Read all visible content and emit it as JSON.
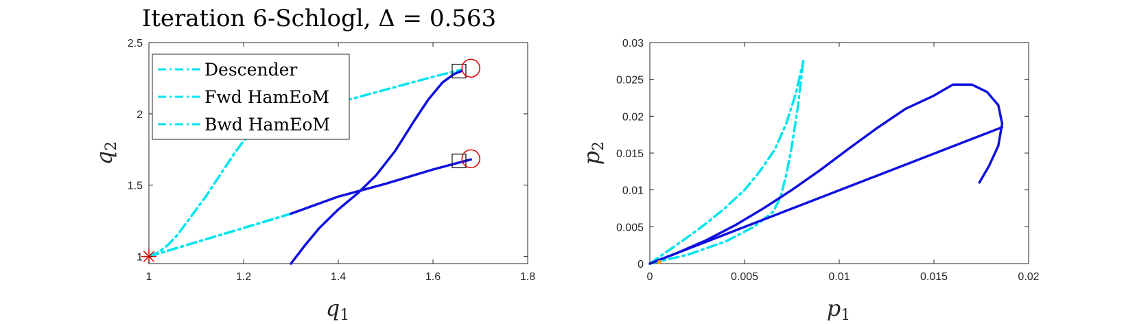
{
  "chart_data": [
    {
      "type": "line",
      "title": "Iteration 6-Schlogl, Δ = 0.563",
      "xlabel": "q",
      "xlabel_sub": "1",
      "ylabel": "q",
      "ylabel_sub": "2",
      "xlim": [
        1,
        1.8
      ],
      "ylim": [
        0.95,
        2.5
      ],
      "xticks": [
        1,
        1.2,
        1.4,
        1.6,
        1.8
      ],
      "xtick_labels": [
        "1",
        "1.2",
        "1.4",
        "1.6",
        "1.8"
      ],
      "yticks": [
        1,
        1.5,
        2,
        2.5
      ],
      "ytick_labels": [
        "1",
        "1.5",
        "2",
        "2.5"
      ],
      "legend_position": "top-left",
      "legend": [
        "Descender",
        "Fwd HamEoM",
        "Bwd HamEoM"
      ],
      "series": [
        {
          "name": "Descender",
          "color": "#00e5ee",
          "style": "dashdot",
          "x": [
            1.0,
            1.02,
            1.04,
            1.06,
            1.08,
            1.1,
            1.12,
            1.14,
            1.16,
            1.18,
            1.2,
            1.22,
            1.25,
            1.3,
            1.4,
            1.5,
            1.6,
            1.66
          ],
          "y": [
            1.0,
            1.03,
            1.08,
            1.15,
            1.24,
            1.33,
            1.42,
            1.52,
            1.62,
            1.72,
            1.81,
            1.88,
            1.94,
            1.99,
            2.08,
            2.17,
            2.26,
            2.31
          ]
        },
        {
          "name": "Fwd HamEoM",
          "color": "#00e5ee",
          "style": "dashdot",
          "x": [
            1.0,
            1.1,
            1.2,
            1.3
          ],
          "y": [
            1.0,
            1.1,
            1.2,
            1.3
          ]
        },
        {
          "name": "Bwd HamEoM",
          "color": "#00e5ee",
          "style": "dashdot",
          "x": [
            1.0,
            1.1,
            1.2,
            1.3
          ],
          "y": [
            1.0,
            1.1,
            1.2,
            1.3
          ]
        },
        {
          "color": "#1010e0",
          "style": "solid",
          "x": [
            1.3,
            1.33,
            1.36,
            1.4,
            1.44,
            1.48,
            1.52,
            1.56,
            1.59,
            1.62,
            1.645,
            1.66
          ],
          "y": [
            0.95,
            1.08,
            1.2,
            1.33,
            1.44,
            1.57,
            1.74,
            1.95,
            2.1,
            2.22,
            2.28,
            2.3
          ]
        },
        {
          "color": "#1010e0",
          "style": "solid",
          "x": [
            1.3,
            1.4,
            1.5,
            1.6,
            1.68
          ],
          "y": [
            1.3,
            1.42,
            1.51,
            1.61,
            1.68
          ]
        }
      ],
      "markers": [
        {
          "shape": "star",
          "color": "#e00000",
          "x": 1.0,
          "y": 1.0
        },
        {
          "shape": "square",
          "color": "#000000",
          "x": 1.655,
          "y": 2.3
        },
        {
          "shape": "square",
          "color": "#000000",
          "x": 1.655,
          "y": 1.67
        },
        {
          "shape": "circle",
          "color": "#e00000",
          "x": 1.68,
          "y": 2.32
        },
        {
          "shape": "circle",
          "color": "#e00000",
          "x": 1.68,
          "y": 1.685
        }
      ]
    },
    {
      "type": "line",
      "xlabel": "p",
      "xlabel_sub": "1",
      "ylabel": "p",
      "ylabel_sub": "2",
      "xlim": [
        0,
        0.02
      ],
      "ylim": [
        0,
        0.03
      ],
      "xticks": [
        0,
        0.005,
        0.01,
        0.015,
        0.02
      ],
      "xtick_labels": [
        "0",
        "0.005",
        "0.01",
        "0.015",
        "0.02"
      ],
      "yticks": [
        0,
        0.005,
        0.01,
        0.015,
        0.02,
        0.025,
        0.03
      ],
      "ytick_labels": [
        "0",
        "0.005",
        "0.01",
        "0.015",
        "0.02",
        "0.025",
        "0.03"
      ],
      "series": [
        {
          "color": "#00e5ee",
          "style": "dashdot",
          "x": [
            0.0,
            0.001,
            0.002,
            0.003,
            0.004,
            0.005,
            0.0058,
            0.0066,
            0.0072,
            0.0077,
            0.0081
          ],
          "y": [
            0.0,
            0.0018,
            0.0036,
            0.0055,
            0.0076,
            0.01,
            0.0125,
            0.0155,
            0.019,
            0.023,
            0.0275
          ]
        },
        {
          "color": "#00e5ee",
          "style": "dashdot",
          "x": [
            0.0,
            0.002,
            0.004,
            0.0055,
            0.0065,
            0.0069,
            0.0072,
            0.0075,
            0.0078,
            0.0081
          ],
          "y": [
            0.0,
            0.0012,
            0.003,
            0.005,
            0.007,
            0.009,
            0.012,
            0.016,
            0.021,
            0.0275
          ]
        },
        {
          "color": "#1010e0",
          "style": "solid",
          "x": [
            0.0,
            0.0015,
            0.003,
            0.0045,
            0.006,
            0.0075,
            0.009,
            0.0105,
            0.012,
            0.0135,
            0.015,
            0.016,
            0.017,
            0.0178,
            0.0184,
            0.0186,
            0.0184,
            0.0179,
            0.0174
          ],
          "y": [
            0.0,
            0.0015,
            0.0032,
            0.0052,
            0.0075,
            0.01,
            0.0127,
            0.0156,
            0.0184,
            0.021,
            0.0228,
            0.0243,
            0.0243,
            0.0233,
            0.0215,
            0.019,
            0.016,
            0.0132,
            0.011
          ]
        },
        {
          "color": "#1010e0",
          "style": "solid",
          "x": [
            0.0,
            0.0186
          ],
          "y": [
            0.0,
            0.0185
          ]
        }
      ],
      "markers": [
        {
          "shape": "dot",
          "color": "#ff9900",
          "x": 0.0005,
          "y": 0.0002
        }
      ]
    }
  ]
}
